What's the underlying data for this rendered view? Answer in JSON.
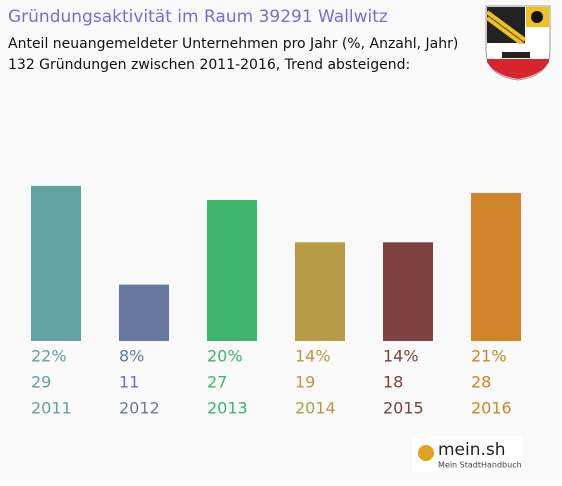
{
  "chart_data": {
    "type": "bar",
    "title": "Gründungsaktivität im Raum 39291 Wallwitz",
    "subtitle": [
      "Anteil neuangemeldeter Unternehmen pro Jahr (%, Anzahl, Jahr)",
      "132 Gründungen zwischen 2011-2016, Trend absteigend:"
    ],
    "categories": [
      "2011",
      "2012",
      "2013",
      "2014",
      "2015",
      "2016"
    ],
    "values": [
      22,
      8,
      20,
      14,
      14,
      21
    ],
    "value_labels": [
      "22%",
      "8%",
      "20%",
      "14%",
      "14%",
      "21%"
    ],
    "counts": [
      29,
      11,
      27,
      19,
      18,
      28
    ],
    "colors": [
      "#62a39f",
      "#6779a3",
      "#3fb46e",
      "#b79b47",
      "#7f4040",
      "#d08428"
    ]
  },
  "logo": {
    "name": "mein.sh",
    "tagline": "Mein StadtHandbuch"
  }
}
